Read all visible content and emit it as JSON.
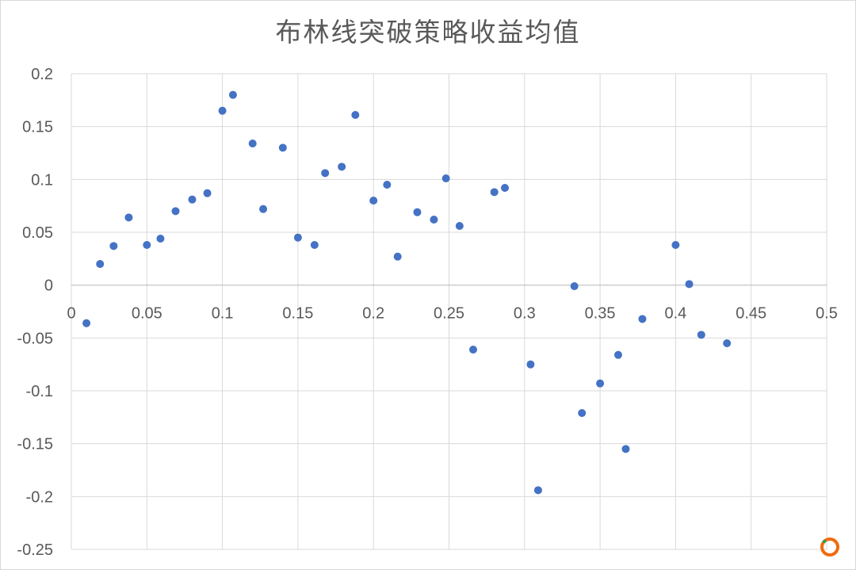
{
  "chart_data": {
    "type": "scatter",
    "title": "布林线突破策略收益均值",
    "xlabel": "",
    "ylabel": "",
    "xlim": [
      0,
      0.5
    ],
    "ylim": [
      -0.25,
      0.2
    ],
    "x_ticks": [
      "0",
      "0.05",
      "0.1",
      "0.15",
      "0.2",
      "0.25",
      "0.3",
      "0.35",
      "0.4",
      "0.45",
      "0.5"
    ],
    "y_ticks": [
      "0.2",
      "0.15",
      "0.1",
      "0.05",
      "0",
      "-0.05",
      "-0.1",
      "-0.15",
      "-0.2",
      "-0.25"
    ],
    "grid": true,
    "legend": "none",
    "marker_color": "#4472c4",
    "series": [
      {
        "points": [
          {
            "x": 0.01,
            "y": -0.036
          },
          {
            "x": 0.019,
            "y": 0.02
          },
          {
            "x": 0.028,
            "y": 0.037
          },
          {
            "x": 0.038,
            "y": 0.064
          },
          {
            "x": 0.05,
            "y": 0.038
          },
          {
            "x": 0.059,
            "y": 0.044
          },
          {
            "x": 0.069,
            "y": 0.07
          },
          {
            "x": 0.08,
            "y": 0.081
          },
          {
            "x": 0.09,
            "y": 0.087
          },
          {
            "x": 0.1,
            "y": 0.165
          },
          {
            "x": 0.107,
            "y": 0.18
          },
          {
            "x": 0.12,
            "y": 0.134
          },
          {
            "x": 0.127,
            "y": 0.072
          },
          {
            "x": 0.14,
            "y": 0.13
          },
          {
            "x": 0.15,
            "y": 0.045
          },
          {
            "x": 0.161,
            "y": 0.038
          },
          {
            "x": 0.168,
            "y": 0.106
          },
          {
            "x": 0.179,
            "y": 0.112
          },
          {
            "x": 0.188,
            "y": 0.161
          },
          {
            "x": 0.2,
            "y": 0.08
          },
          {
            "x": 0.209,
            "y": 0.095
          },
          {
            "x": 0.216,
            "y": 0.027
          },
          {
            "x": 0.229,
            "y": 0.069
          },
          {
            "x": 0.24,
            "y": 0.062
          },
          {
            "x": 0.248,
            "y": 0.101
          },
          {
            "x": 0.257,
            "y": 0.056
          },
          {
            "x": 0.266,
            "y": -0.061
          },
          {
            "x": 0.28,
            "y": 0.088
          },
          {
            "x": 0.287,
            "y": 0.092
          },
          {
            "x": 0.304,
            "y": -0.075
          },
          {
            "x": 0.309,
            "y": -0.194
          },
          {
            "x": 0.333,
            "y": -0.001
          },
          {
            "x": 0.338,
            "y": -0.121
          },
          {
            "x": 0.35,
            "y": -0.093
          },
          {
            "x": 0.362,
            "y": -0.066
          },
          {
            "x": 0.367,
            "y": -0.155
          },
          {
            "x": 0.378,
            "y": -0.032
          },
          {
            "x": 0.4,
            "y": 0.038
          },
          {
            "x": 0.409,
            "y": 0.001
          },
          {
            "x": 0.417,
            "y": -0.047
          },
          {
            "x": 0.434,
            "y": -0.055
          }
        ]
      }
    ]
  }
}
